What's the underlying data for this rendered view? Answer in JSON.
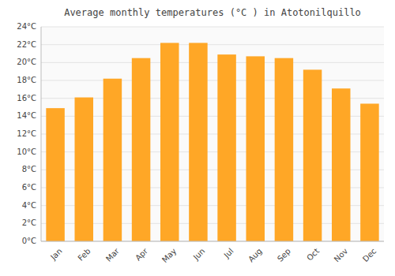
{
  "chart_data": {
    "type": "bar",
    "title": "Average monthly temperatures (°C ) in Atotonilquillo",
    "categories": [
      "Jan",
      "Feb",
      "Mar",
      "Apr",
      "May",
      "Jun",
      "Jul",
      "Aug",
      "Sep",
      "Oct",
      "Nov",
      "Dec"
    ],
    "values": [
      14.9,
      16.1,
      18.2,
      20.5,
      22.2,
      22.2,
      20.9,
      20.7,
      20.5,
      19.2,
      17.1,
      15.4
    ],
    "color": "#FFA726",
    "ylim": [
      0,
      24
    ],
    "yticks": [
      {
        "value": 0,
        "label": "0°C"
      },
      {
        "value": 2,
        "label": "2°C"
      },
      {
        "value": 4,
        "label": "4°C"
      },
      {
        "value": 6,
        "label": "6°C"
      },
      {
        "value": 8,
        "label": "8°C"
      },
      {
        "value": 10,
        "label": "10°C"
      },
      {
        "value": 12,
        "label": "12°C"
      },
      {
        "value": 14,
        "label": "14°C"
      },
      {
        "value": 16,
        "label": "16°C"
      },
      {
        "value": 18,
        "label": "18°C"
      },
      {
        "value": 20,
        "label": "20°C"
      },
      {
        "value": 22,
        "label": "22°C"
      },
      {
        "value": 24,
        "label": "24°C"
      }
    ],
    "grid": true
  }
}
